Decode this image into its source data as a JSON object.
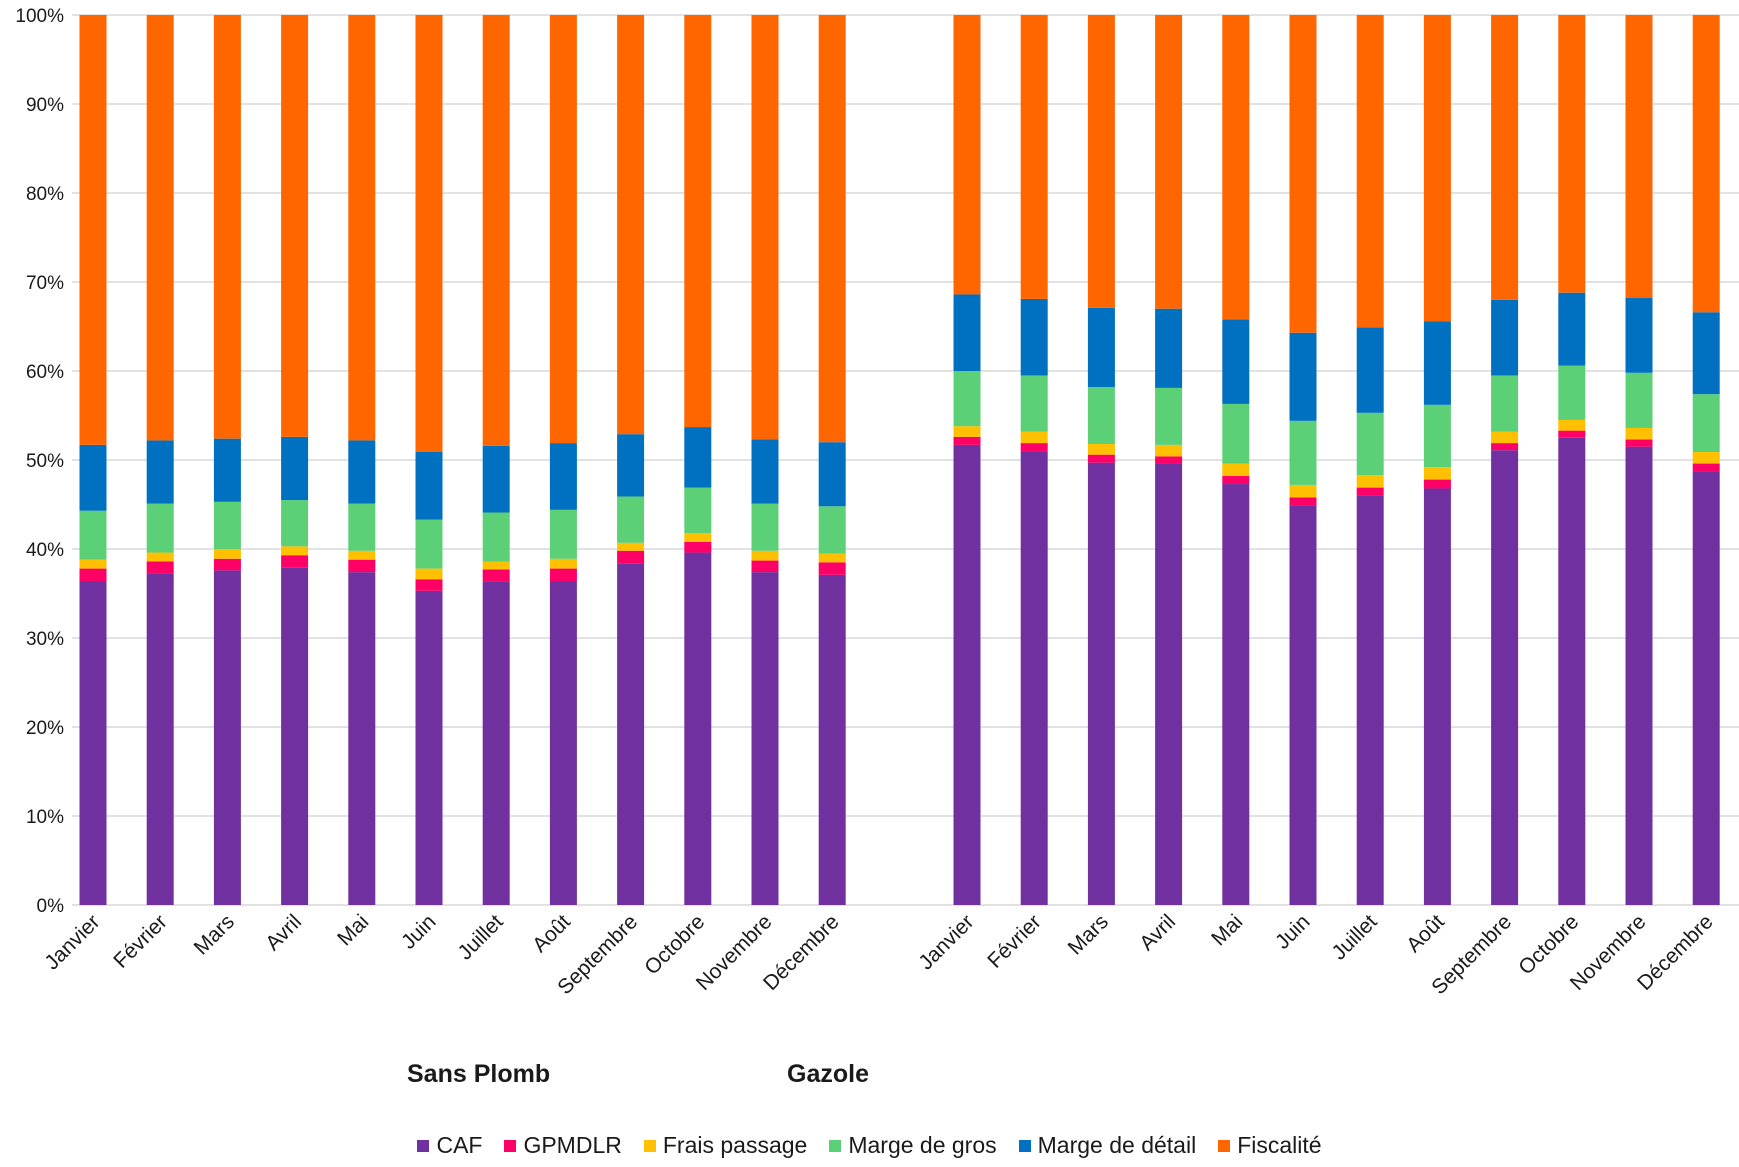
{
  "chart_data": {
    "type": "bar",
    "stacked": true,
    "percent_stacked": true,
    "ylim": [
      0,
      100
    ],
    "ytick_labels": [
      "0%",
      "10%",
      "20%",
      "30%",
      "40%",
      "50%",
      "60%",
      "70%",
      "80%",
      "90%",
      "100%"
    ],
    "grid": true,
    "legend_position": "bottom",
    "groups": [
      {
        "name": "Sans Plomb",
        "categories": [
          "Janvier",
          "Février",
          "Mars",
          "Avril",
          "Mai",
          "Juin",
          "Juillet",
          "Août",
          "Septembre",
          "Octobre",
          "Novembre",
          "Décembre"
        ],
        "series": [
          {
            "name": "CAF",
            "values": [
              36.4,
              37.2,
              37.6,
              37.9,
              37.4,
              35.3,
              36.3,
              36.4,
              38.4,
              39.6,
              37.4,
              37.1
            ]
          },
          {
            "name": "GPMDLR",
            "values": [
              1.4,
              1.4,
              1.3,
              1.4,
              1.4,
              1.3,
              1.4,
              1.4,
              1.4,
              1.2,
              1.3,
              1.4
            ]
          },
          {
            "name": "Frais passage",
            "values": [
              1.0,
              1.0,
              1.1,
              1.0,
              1.0,
              1.2,
              0.9,
              1.1,
              0.9,
              1.0,
              1.1,
              1.0
            ]
          },
          {
            "name": "Marge de gros",
            "values": [
              5.5,
              5.5,
              5.3,
              5.2,
              5.3,
              5.5,
              5.5,
              5.5,
              5.2,
              5.1,
              5.3,
              5.3
            ]
          },
          {
            "name": "Marge de détail",
            "values": [
              7.4,
              7.1,
              7.1,
              7.1,
              7.1,
              7.6,
              7.5,
              7.5,
              7.0,
              6.8,
              7.2,
              7.2
            ]
          },
          {
            "name": "Fiscalité",
            "values": [
              48.3,
              47.8,
              47.6,
              47.4,
              47.8,
              49.1,
              48.4,
              48.1,
              47.1,
              46.3,
              47.7,
              48.0
            ]
          }
        ]
      },
      {
        "name": "Gazole",
        "categories": [
          "Janvier",
          "Février",
          "Mars",
          "Avril",
          "Mai",
          "Juin",
          "Juillet",
          "Août",
          "Septembre",
          "Octobre",
          "Novembre",
          "Décembre"
        ],
        "series": [
          {
            "name": "CAF",
            "values": [
              51.7,
              51.0,
              49.7,
              49.6,
              47.3,
              44.9,
              46.0,
              46.8,
              51.1,
              52.5,
              51.5,
              48.7
            ]
          },
          {
            "name": "GPMDLR",
            "values": [
              0.9,
              0.9,
              0.9,
              0.8,
              0.9,
              0.9,
              0.9,
              1.0,
              0.8,
              0.8,
              0.8,
              0.9
            ]
          },
          {
            "name": "Frais passage",
            "values": [
              1.2,
              1.3,
              1.2,
              1.3,
              1.4,
              1.4,
              1.4,
              1.4,
              1.3,
              1.2,
              1.3,
              1.3
            ]
          },
          {
            "name": "Marge de gros",
            "values": [
              6.2,
              6.3,
              6.4,
              6.4,
              6.7,
              7.2,
              7.0,
              7.0,
              6.3,
              6.1,
              6.2,
              6.5
            ]
          },
          {
            "name": "Marge de détail",
            "values": [
              8.6,
              8.6,
              8.9,
              8.9,
              9.5,
              9.9,
              9.6,
              9.4,
              8.5,
              8.2,
              8.4,
              9.2
            ]
          },
          {
            "name": "Fiscalité",
            "values": [
              31.4,
              31.9,
              32.9,
              33.0,
              34.2,
              35.7,
              35.1,
              34.4,
              32.0,
              31.2,
              31.8,
              33.4
            ]
          }
        ]
      }
    ],
    "colors": {
      "CAF": "#7030A0",
      "GPMDLR": "#FF0066",
      "Frais passage": "#FFC000",
      "Marge de gros": "#5BD077",
      "Marge de détail": "#0070C0",
      "Fiscalité": "#FF6600"
    }
  }
}
